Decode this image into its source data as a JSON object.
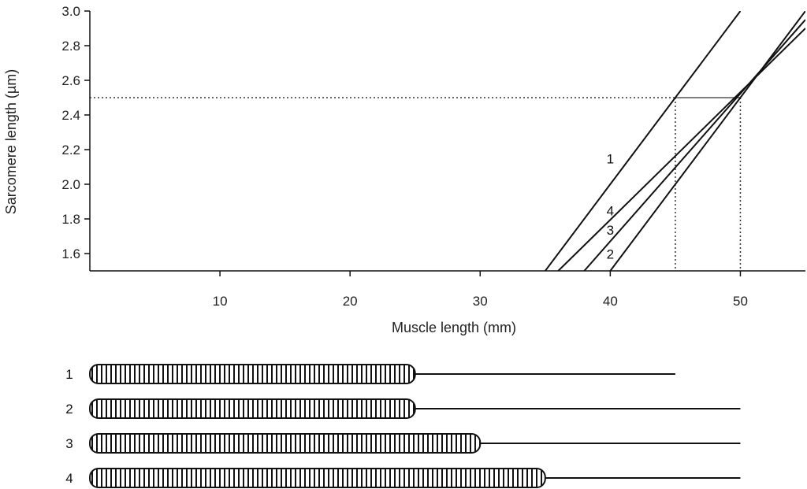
{
  "chart_data": {
    "type": "line",
    "xlabel": "Muscle length (mm)",
    "ylabel": "Sarcomere length (µm)",
    "xlim": [
      0,
      55
    ],
    "ylim": [
      1.5,
      3.0
    ],
    "xticks": [
      10,
      20,
      30,
      40,
      50
    ],
    "yticks": [
      1.6,
      1.8,
      2.0,
      2.2,
      2.4,
      2.6,
      2.8,
      3.0
    ],
    "grid": false,
    "series": [
      {
        "name": "1",
        "x": [
          35,
          50
        ],
        "y": [
          1.5,
          3.0
        ]
      },
      {
        "name": "2",
        "x": [
          40,
          55
        ],
        "y": [
          1.5,
          3.0
        ]
      },
      {
        "name": "3",
        "x": [
          38,
          55
        ],
        "y": [
          1.5,
          2.95
        ]
      },
      {
        "name": "4",
        "x": [
          36,
          55
        ],
        "y": [
          1.5,
          2.9
        ]
      }
    ],
    "reference_lines": {
      "y_value": 2.5,
      "x_values": [
        45,
        50
      ]
    }
  },
  "muscle_diagram": {
    "rows": [
      {
        "label": "1",
        "fiber_end": 25,
        "tendon_end": 45
      },
      {
        "label": "2",
        "fiber_end": 25,
        "tendon_end": 50
      },
      {
        "label": "3",
        "fiber_end": 30,
        "tendon_end": 50
      },
      {
        "label": "4",
        "fiber_end": 35,
        "tendon_end": 50
      }
    ]
  }
}
